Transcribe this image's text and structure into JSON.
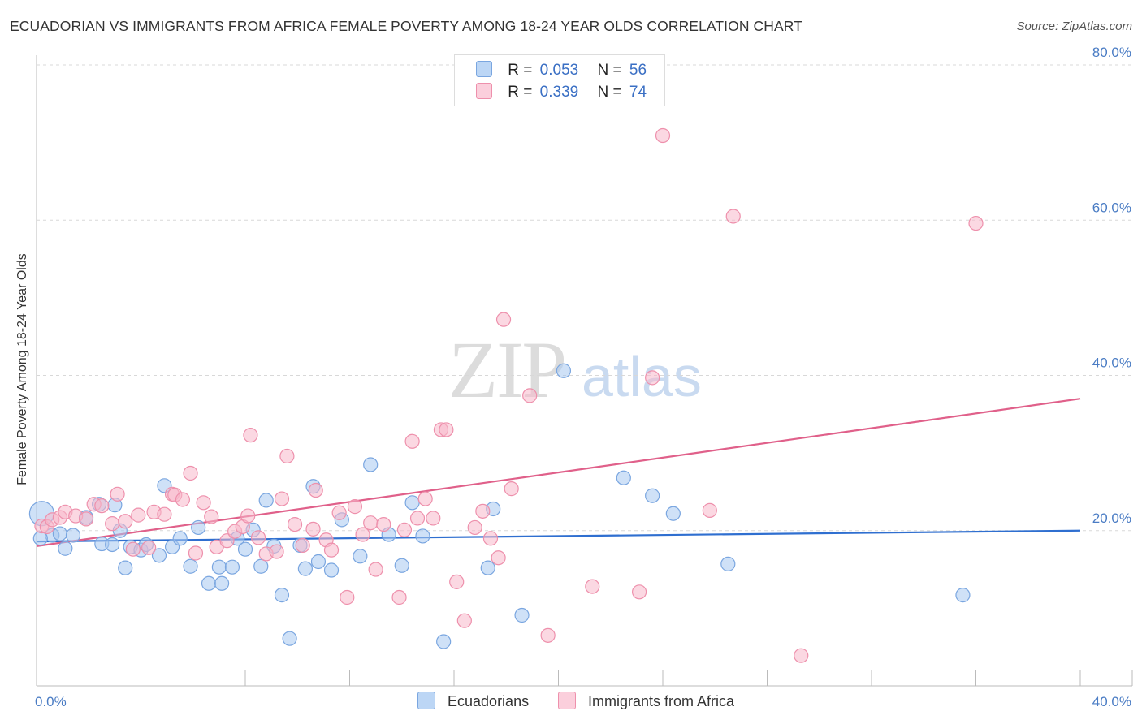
{
  "title": "ECUADORIAN VS IMMIGRANTS FROM AFRICA FEMALE POVERTY AMONG 18-24 YEAR OLDS CORRELATION CHART",
  "source": "Source: ZipAtlas.com",
  "watermark": {
    "zip": "ZIP",
    "atlas": "atlas"
  },
  "legend": {
    "r_label": "R =",
    "n_label": "N =",
    "rows": [
      {
        "r": "0.053",
        "n": "56",
        "color": "#a8c8f0"
      },
      {
        "r": "0.339",
        "n": "74",
        "color": "#f7b8cb"
      }
    ]
  },
  "bottom_legend": [
    {
      "label": "Ecuadorians",
      "color": "#a8c8f0"
    },
    {
      "label": "Immigrants from Africa",
      "color": "#f7b8cb"
    }
  ],
  "chart_data": {
    "type": "scatter",
    "title": "ECUADORIAN VS IMMIGRANTS FROM AFRICA FEMALE POVERTY AMONG 18-24 YEAR OLDS CORRELATION CHART",
    "xlabel": "",
    "ylabel": "Female Poverty Among 18-24 Year Olds",
    "xlim": [
      0,
      40
    ],
    "ylim": [
      0,
      80
    ],
    "x_tick_labels": [
      "0.0%",
      "40.0%"
    ],
    "y_ticks": [
      20,
      40,
      60,
      80
    ],
    "y_tick_labels": [
      "20.0%",
      "40.0%",
      "60.0%",
      "80.0%"
    ],
    "grid": true,
    "series": [
      {
        "name": "Ecuadorians",
        "color": "#a8c8f0",
        "stroke": "#7aa6e0",
        "line_color": "#2f6fd0",
        "trend": {
          "x": [
            0,
            40
          ],
          "y": [
            18.6,
            20.0
          ]
        },
        "points": [
          [
            0.2,
            22.2
          ],
          [
            0.6,
            19.4
          ],
          [
            0.9,
            19.6
          ],
          [
            1.1,
            17.7
          ],
          [
            1.4,
            19.4
          ],
          [
            1.9,
            21.7
          ],
          [
            2.4,
            23.4
          ],
          [
            2.5,
            18.3
          ],
          [
            2.9,
            18.2
          ],
          [
            3.2,
            20.0
          ],
          [
            3.4,
            15.2
          ],
          [
            3.6,
            17.9
          ],
          [
            4.0,
            17.5
          ],
          [
            4.2,
            18.2
          ],
          [
            4.7,
            16.8
          ],
          [
            4.9,
            25.8
          ],
          [
            5.2,
            17.9
          ],
          [
            5.5,
            19.0
          ],
          [
            5.9,
            15.4
          ],
          [
            6.2,
            20.4
          ],
          [
            6.6,
            13.2
          ],
          [
            7.0,
            15.3
          ],
          [
            7.1,
            13.2
          ],
          [
            7.5,
            15.3
          ],
          [
            7.7,
            19.0
          ],
          [
            8.0,
            17.6
          ],
          [
            8.3,
            20.1
          ],
          [
            8.6,
            15.4
          ],
          [
            8.8,
            23.9
          ],
          [
            9.1,
            18.0
          ],
          [
            9.4,
            11.7
          ],
          [
            9.7,
            6.1
          ],
          [
            10.1,
            18.1
          ],
          [
            10.3,
            15.1
          ],
          [
            10.6,
            25.7
          ],
          [
            10.8,
            16.0
          ],
          [
            11.3,
            14.9
          ],
          [
            11.7,
            21.4
          ],
          [
            12.4,
            16.7
          ],
          [
            12.8,
            28.5
          ],
          [
            13.5,
            19.5
          ],
          [
            14.0,
            15.5
          ],
          [
            14.4,
            23.6
          ],
          [
            14.8,
            19.3
          ],
          [
            15.6,
            5.7
          ],
          [
            17.3,
            15.2
          ],
          [
            17.5,
            22.8
          ],
          [
            18.6,
            9.1
          ],
          [
            20.2,
            40.6
          ],
          [
            22.5,
            26.8
          ],
          [
            23.6,
            24.5
          ],
          [
            24.4,
            22.2
          ],
          [
            26.5,
            15.7
          ],
          [
            35.5,
            11.7
          ],
          [
            0.15,
            19.0
          ],
          [
            3.0,
            23.3
          ]
        ]
      },
      {
        "name": "Immigrants from Africa",
        "color": "#f7b8cb",
        "stroke": "#ee90ac",
        "line_color": "#e0608a",
        "trend": {
          "x": [
            0,
            40
          ],
          "y": [
            18.0,
            37.0
          ]
        },
        "points": [
          [
            0.2,
            20.6
          ],
          [
            0.4,
            20.5
          ],
          [
            0.6,
            21.4
          ],
          [
            0.9,
            21.7
          ],
          [
            1.1,
            22.4
          ],
          [
            1.5,
            21.9
          ],
          [
            1.9,
            21.5
          ],
          [
            2.2,
            23.4
          ],
          [
            2.5,
            23.2
          ],
          [
            2.9,
            20.9
          ],
          [
            3.1,
            24.7
          ],
          [
            3.4,
            21.2
          ],
          [
            3.7,
            17.6
          ],
          [
            3.9,
            22.0
          ],
          [
            4.3,
            17.8
          ],
          [
            4.5,
            22.4
          ],
          [
            4.9,
            22.1
          ],
          [
            5.2,
            24.7
          ],
          [
            5.3,
            24.6
          ],
          [
            5.6,
            24.0
          ],
          [
            5.9,
            27.4
          ],
          [
            6.1,
            17.1
          ],
          [
            6.4,
            23.6
          ],
          [
            6.7,
            21.8
          ],
          [
            6.9,
            17.9
          ],
          [
            7.3,
            18.7
          ],
          [
            7.6,
            19.9
          ],
          [
            7.9,
            20.5
          ],
          [
            8.1,
            21.9
          ],
          [
            8.2,
            32.3
          ],
          [
            8.5,
            19.1
          ],
          [
            8.8,
            17.0
          ],
          [
            9.2,
            17.3
          ],
          [
            9.4,
            24.1
          ],
          [
            9.6,
            29.6
          ],
          [
            9.9,
            20.8
          ],
          [
            10.2,
            18.1
          ],
          [
            10.6,
            20.2
          ],
          [
            10.7,
            25.2
          ],
          [
            11.1,
            18.8
          ],
          [
            11.3,
            17.5
          ],
          [
            11.6,
            22.3
          ],
          [
            11.9,
            11.4
          ],
          [
            12.2,
            23.1
          ],
          [
            12.5,
            19.5
          ],
          [
            12.8,
            21.0
          ],
          [
            13.0,
            15.0
          ],
          [
            13.3,
            20.8
          ],
          [
            13.9,
            11.4
          ],
          [
            14.1,
            20.1
          ],
          [
            14.4,
            31.5
          ],
          [
            14.6,
            21.6
          ],
          [
            14.9,
            24.1
          ],
          [
            15.2,
            21.6
          ],
          [
            15.5,
            33.0
          ],
          [
            15.7,
            33.0
          ],
          [
            16.1,
            13.4
          ],
          [
            16.4,
            8.4
          ],
          [
            16.8,
            20.4
          ],
          [
            17.1,
            22.5
          ],
          [
            17.4,
            19.0
          ],
          [
            17.7,
            16.5
          ],
          [
            17.9,
            47.2
          ],
          [
            18.2,
            25.4
          ],
          [
            18.9,
            37.4
          ],
          [
            19.6,
            6.5
          ],
          [
            21.3,
            12.8
          ],
          [
            23.1,
            12.1
          ],
          [
            23.6,
            39.7
          ],
          [
            24.0,
            70.9
          ],
          [
            25.8,
            22.6
          ],
          [
            26.7,
            60.5
          ],
          [
            29.3,
            3.9
          ],
          [
            36.0,
            59.6
          ]
        ]
      }
    ]
  }
}
